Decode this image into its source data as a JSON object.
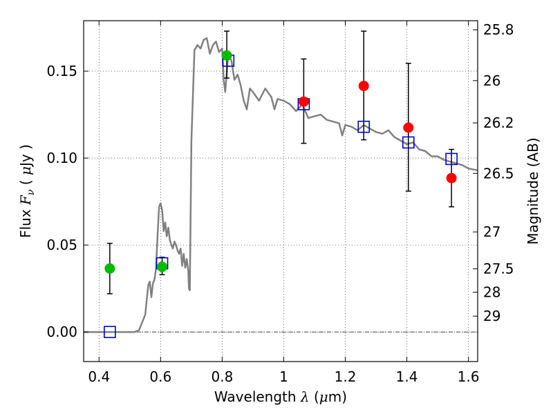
{
  "chart_data": {
    "type": "scatter",
    "title": "",
    "xlabel": {
      "prefix": "Wavelength  ",
      "symbol": "λ",
      "unit_open": " (",
      "unit_mu": "μ",
      "unit_rest": "m)"
    },
    "ylabel": {
      "prefix": "Flux  ",
      "symbol": "F",
      "sub": "ν",
      "unit_open": "  ( ",
      "unit_mu": "μ",
      "unit_rest": "Jy )"
    },
    "y2label": "Magnitude (AB)",
    "xlim": [
      0.35,
      1.63
    ],
    "ylim": [
      -0.017,
      0.179
    ],
    "grid": true,
    "x_ticks": [
      {
        "value": 0.4,
        "label": "0.4"
      },
      {
        "value": 0.6,
        "label": "0.6"
      },
      {
        "value": 0.8,
        "label": "0.8"
      },
      {
        "value": 1.0,
        "label": "1"
      },
      {
        "value": 1.2,
        "label": "1.2"
      },
      {
        "value": 1.4,
        "label": "1.4"
      },
      {
        "value": 1.6,
        "label": "1.6"
      }
    ],
    "y_ticks": [
      {
        "value": 0.0,
        "label": "0.00"
      },
      {
        "value": 0.05,
        "label": "0.05"
      },
      {
        "value": 0.1,
        "label": "0.10"
      },
      {
        "value": 0.15,
        "label": "0.15"
      }
    ],
    "y2_ticks": [
      {
        "value": 25.8,
        "label": "25.8"
      },
      {
        "value": 26.0,
        "label": "26"
      },
      {
        "value": 26.2,
        "label": "26.2"
      },
      {
        "value": 26.5,
        "label": "26.5"
      },
      {
        "value": 27.0,
        "label": "27"
      },
      {
        "value": 27.5,
        "label": "27.5"
      },
      {
        "value": 28.0,
        "label": "28"
      },
      {
        "value": 29.0,
        "label": "29"
      }
    ],
    "model_spectrum": {
      "color": "#808080",
      "x": [
        0.35,
        0.4,
        0.45,
        0.5,
        0.515,
        0.53,
        0.55,
        0.56,
        0.565,
        0.57,
        0.575,
        0.58,
        0.585,
        0.59,
        0.595,
        0.6,
        0.605,
        0.61,
        0.615,
        0.62,
        0.625,
        0.63,
        0.635,
        0.64,
        0.645,
        0.65,
        0.655,
        0.66,
        0.665,
        0.67,
        0.675,
        0.68,
        0.685,
        0.69,
        0.692,
        0.695,
        0.7,
        0.71,
        0.72,
        0.73,
        0.74,
        0.75,
        0.76,
        0.77,
        0.78,
        0.79,
        0.8,
        0.805,
        0.81,
        0.82,
        0.83,
        0.84,
        0.85,
        0.86,
        0.87,
        0.88,
        0.89,
        0.9,
        0.92,
        0.94,
        0.96,
        0.97,
        0.98,
        1.0,
        1.02,
        1.04,
        1.06,
        1.08,
        1.1,
        1.12,
        1.14,
        1.16,
        1.18,
        1.19,
        1.2,
        1.22,
        1.24,
        1.26,
        1.28,
        1.3,
        1.32,
        1.34,
        1.36,
        1.38,
        1.4,
        1.42,
        1.44,
        1.46,
        1.48,
        1.5,
        1.52,
        1.54,
        1.56,
        1.58,
        1.6,
        1.63
      ],
      "y": [
        0.0,
        0.0,
        0.0,
        0.0,
        0.0,
        0.001,
        0.01,
        0.027,
        0.029,
        0.02,
        0.028,
        0.03,
        0.036,
        0.055,
        0.072,
        0.074,
        0.07,
        0.058,
        0.063,
        0.055,
        0.06,
        0.053,
        0.05,
        0.048,
        0.052,
        0.05,
        0.047,
        0.045,
        0.048,
        0.038,
        0.045,
        0.037,
        0.042,
        0.035,
        0.025,
        0.024,
        0.11,
        0.162,
        0.165,
        0.163,
        0.168,
        0.169,
        0.16,
        0.165,
        0.167,
        0.161,
        0.163,
        0.145,
        0.138,
        0.16,
        0.156,
        0.145,
        0.148,
        0.142,
        0.133,
        0.128,
        0.14,
        0.138,
        0.133,
        0.14,
        0.135,
        0.128,
        0.134,
        0.133,
        0.131,
        0.127,
        0.131,
        0.123,
        0.124,
        0.125,
        0.122,
        0.121,
        0.12,
        0.113,
        0.119,
        0.118,
        0.116,
        0.119,
        0.117,
        0.115,
        0.114,
        0.116,
        0.112,
        0.11,
        0.108,
        0.109,
        0.105,
        0.104,
        0.101,
        0.101,
        0.099,
        0.098,
        0.097,
        0.096,
        0.094,
        0.093
      ]
    },
    "series": [
      {
        "marker": "square-open",
        "color": "#0000cc",
        "x": [
          0.435,
          0.605,
          0.82,
          1.065,
          1.26,
          1.405,
          1.545
        ],
        "y": [
          0.0,
          0.0395,
          0.156,
          0.131,
          0.118,
          0.109,
          0.0995
        ]
      },
      {
        "marker": "circle",
        "color": "#00bb00",
        "x": [
          0.435,
          0.605,
          0.815
        ],
        "y": [
          0.0365,
          0.0375,
          0.159
        ],
        "yerr_low": [
          0.022,
          0.033,
          0.146
        ],
        "yerr_high": [
          0.051,
          0.043,
          0.173
        ]
      },
      {
        "marker": "circle",
        "color": "#ff0000",
        "x": [
          1.065,
          1.26,
          1.405,
          1.545
        ],
        "y": [
          0.1325,
          0.1415,
          0.1175,
          0.0885
        ],
        "yerr_low": [
          0.1085,
          0.1105,
          0.081,
          0.072
        ],
        "yerr_high": [
          0.157,
          0.173,
          0.1545,
          0.105
        ]
      }
    ]
  }
}
